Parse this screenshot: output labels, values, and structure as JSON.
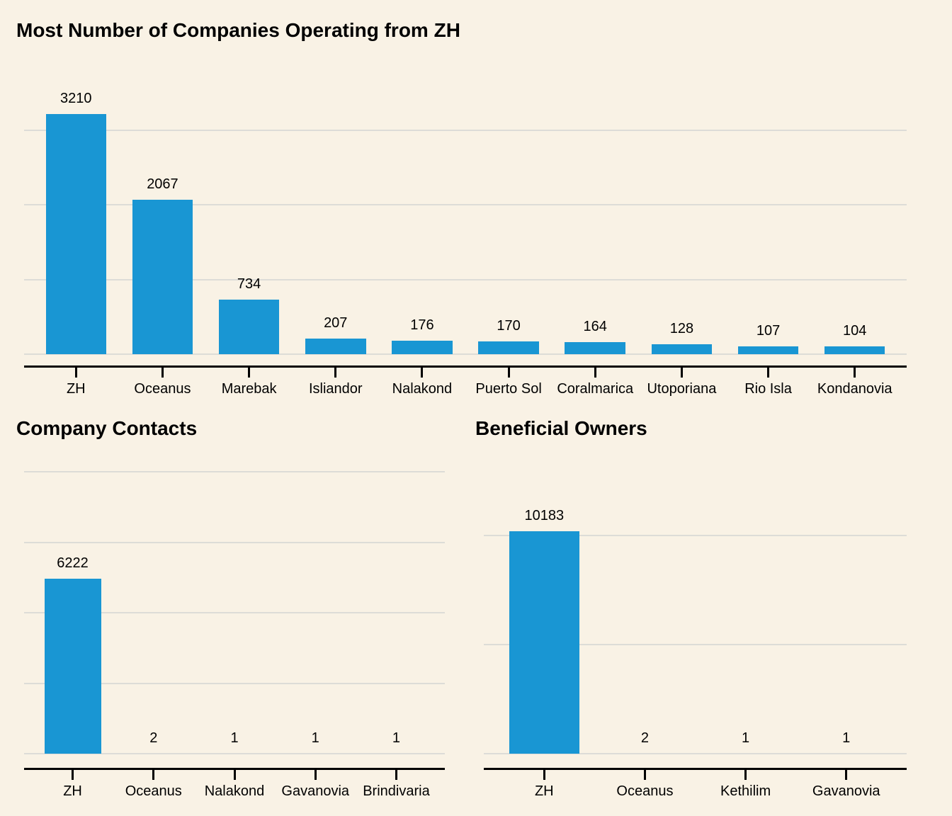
{
  "page": {
    "background_color": "#f9f2e5",
    "text_color": "#000000",
    "gridline_color": "#dddcd7",
    "accent_color": "#1996d3"
  },
  "chart_data": [
    {
      "type": "bar",
      "title": "Most Number of Companies Operating from ZH",
      "categories": [
        "ZH",
        "Oceanus",
        "Marebak",
        "Isliandor",
        "Nalakond",
        "Puerto Sol",
        "Coralmarica",
        "Utoporiana",
        "Rio Isla",
        "Kondanovia"
      ],
      "values": [
        3210,
        2067,
        734,
        207,
        176,
        170,
        164,
        128,
        107,
        104
      ],
      "bar_labels": [
        "3210",
        "2067",
        "734",
        "207",
        "176",
        "170",
        "164",
        "128",
        "107",
        "104"
      ],
      "xlabel": "",
      "ylabel": "",
      "ylim": [
        0,
        3400
      ],
      "y_gridlines": [
        0,
        1000,
        2000,
        3000
      ],
      "grid": "horizontal",
      "legend_position": "none",
      "bar_color": "#1996d3"
    },
    {
      "type": "bar",
      "title": "Company Contacts",
      "categories": [
        "ZH",
        "Oceanus",
        "Nalakond",
        "Gavanovia",
        "Brindivaria"
      ],
      "values": [
        6222,
        2,
        1,
        1,
        1
      ],
      "bar_labels": [
        "6222",
        "2",
        "1",
        "1",
        "1"
      ],
      "xlabel": "",
      "ylabel": "",
      "ylim": [
        0,
        10500
      ],
      "y_gridlines": [
        0,
        2500,
        5000,
        7500,
        10000
      ],
      "grid": "horizontal",
      "legend_position": "none",
      "bar_color": "#1996d3"
    },
    {
      "type": "bar",
      "title": "Beneficial Owners",
      "categories": [
        "ZH",
        "Oceanus",
        "Kethilim",
        "Gavanovia"
      ],
      "values": [
        10183,
        2,
        1,
        1
      ],
      "bar_labels": [
        "10183",
        "2",
        "1",
        "1"
      ],
      "xlabel": "",
      "ylabel": "",
      "ylim": [
        0,
        10500
      ],
      "y_gridlines": [
        0,
        5000,
        10000
      ],
      "grid": "horizontal",
      "legend_position": "none",
      "bar_color": "#1996d3"
    }
  ]
}
